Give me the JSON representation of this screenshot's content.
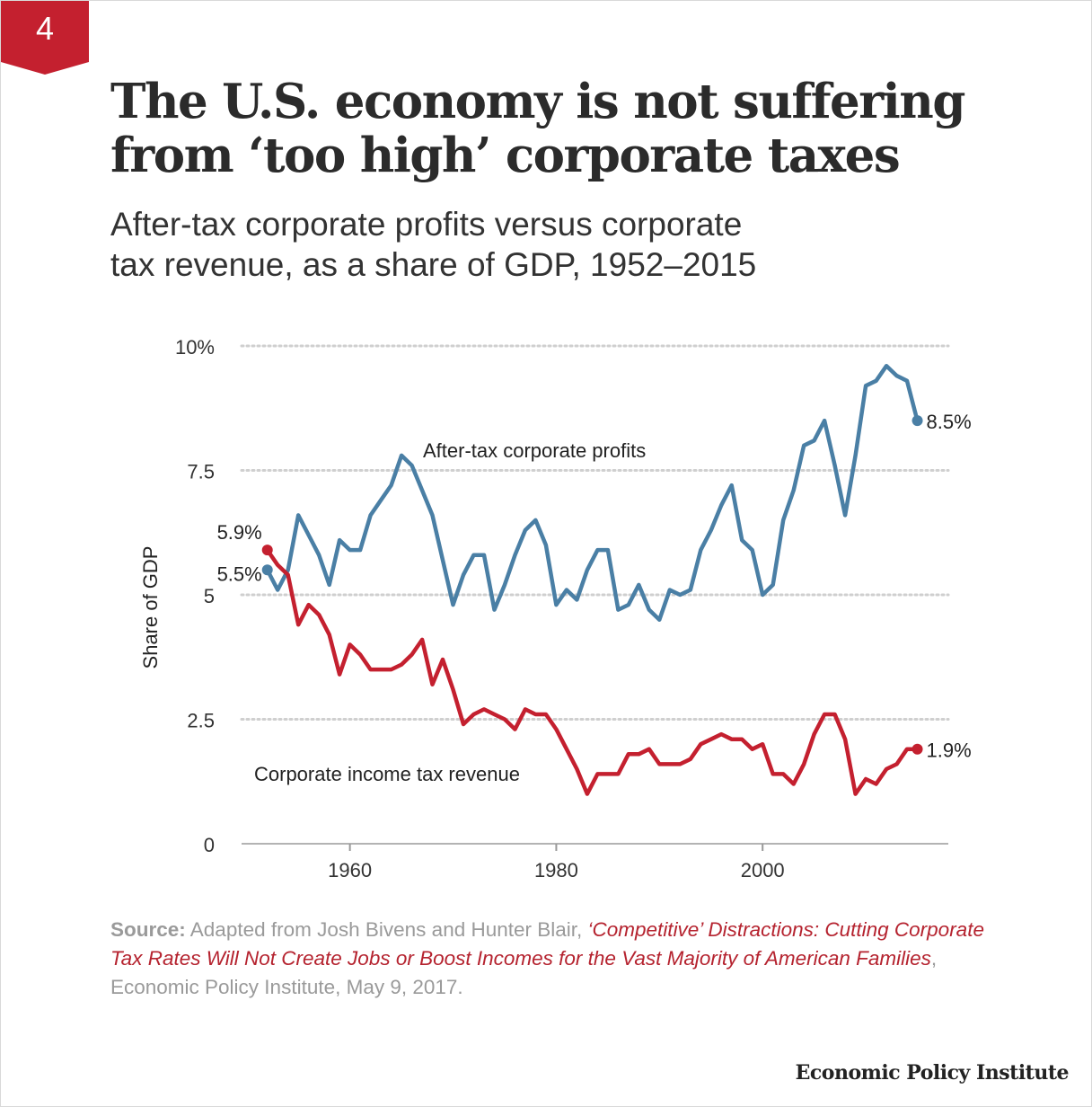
{
  "badge": {
    "number": "4",
    "color": "#c4202f"
  },
  "header": {
    "title_line1": "The U.S. economy is not suffering",
    "title_line2": "from ‘too high’ corporate taxes",
    "subtitle_line1": "After-tax corporate profits versus corporate",
    "subtitle_line2": "tax revenue, as a share of GDP, 1952–2015"
  },
  "chart_data": {
    "type": "line",
    "ylabel": "Share of GDP",
    "xlabel": "",
    "xlim": [
      1949.5,
      2018
    ],
    "ylim": [
      0,
      10
    ],
    "y_ticks": [
      {
        "value": 10,
        "label": "10%"
      },
      {
        "value": 7.5,
        "label": "7.5"
      },
      {
        "value": 5,
        "label": "5"
      },
      {
        "value": 2.5,
        "label": "2.5"
      },
      {
        "value": 0,
        "label": "0"
      }
    ],
    "x_ticks": [
      {
        "value": 1960,
        "label": "1960"
      },
      {
        "value": 1980,
        "label": "1980"
      },
      {
        "value": 2000,
        "label": "2000"
      }
    ],
    "grid": true,
    "x": [
      1952,
      1953,
      1954,
      1955,
      1956,
      1957,
      1958,
      1959,
      1960,
      1961,
      1962,
      1963,
      1964,
      1965,
      1966,
      1967,
      1968,
      1969,
      1970,
      1971,
      1972,
      1973,
      1974,
      1975,
      1976,
      1977,
      1978,
      1979,
      1980,
      1981,
      1982,
      1983,
      1984,
      1985,
      1986,
      1987,
      1988,
      1989,
      1990,
      1991,
      1992,
      1993,
      1994,
      1995,
      1996,
      1997,
      1998,
      1999,
      2000,
      2001,
      2002,
      2003,
      2004,
      2005,
      2006,
      2007,
      2008,
      2009,
      2010,
      2011,
      2012,
      2013,
      2014,
      2015
    ],
    "series": [
      {
        "name": "After-tax corporate profits",
        "color": "#4a7fa5",
        "end_label": "8.5%",
        "start_label": "5.5%",
        "values": [
          5.5,
          5.1,
          5.5,
          6.6,
          6.2,
          5.8,
          5.2,
          6.1,
          5.9,
          5.9,
          6.6,
          6.9,
          7.2,
          7.8,
          7.6,
          7.1,
          6.6,
          5.7,
          4.8,
          5.4,
          5.8,
          5.8,
          4.7,
          5.2,
          5.8,
          6.3,
          6.5,
          6.0,
          4.8,
          5.1,
          4.9,
          5.5,
          5.9,
          5.9,
          4.7,
          4.8,
          5.2,
          4.7,
          4.5,
          5.1,
          5.0,
          5.1,
          5.9,
          6.3,
          6.8,
          7.2,
          6.1,
          5.9,
          5.0,
          5.2,
          6.5,
          7.1,
          8.0,
          8.1,
          8.5,
          7.6,
          6.6,
          7.8,
          9.2,
          9.3,
          9.6,
          9.4,
          9.3,
          8.5
        ]
      },
      {
        "name": "Corporate income tax revenue",
        "color": "#c4202f",
        "end_label": "1.9%",
        "start_label": "5.9%",
        "values": [
          5.9,
          5.6,
          5.4,
          4.4,
          4.8,
          4.6,
          4.2,
          3.4,
          4.0,
          3.8,
          3.5,
          3.5,
          3.5,
          3.6,
          3.8,
          4.1,
          3.2,
          3.7,
          3.1,
          2.4,
          2.6,
          2.7,
          2.6,
          2.5,
          2.3,
          2.7,
          2.6,
          2.6,
          2.3,
          1.9,
          1.5,
          1.0,
          1.4,
          1.4,
          1.4,
          1.8,
          1.8,
          1.9,
          1.6,
          1.6,
          1.6,
          1.7,
          2.0,
          2.1,
          2.2,
          2.1,
          2.1,
          1.9,
          2.0,
          1.4,
          1.4,
          1.2,
          1.6,
          2.2,
          2.6,
          2.6,
          2.1,
          1.0,
          1.3,
          1.2,
          1.5,
          1.6,
          1.9,
          1.9
        ]
      }
    ]
  },
  "source": {
    "prefix": "Source:",
    "text1": " Adapted from Josh Bivens and Hunter Blair, ",
    "link": "‘Competitive’ Distractions: Cutting Corporate Tax Rates Will Not Create Jobs or Boost Incomes for the Vast Majority of American Families",
    "text2": ", Economic Policy Institute, May 9, 2017."
  },
  "footer": {
    "publisher": "Economic Policy Institute"
  }
}
